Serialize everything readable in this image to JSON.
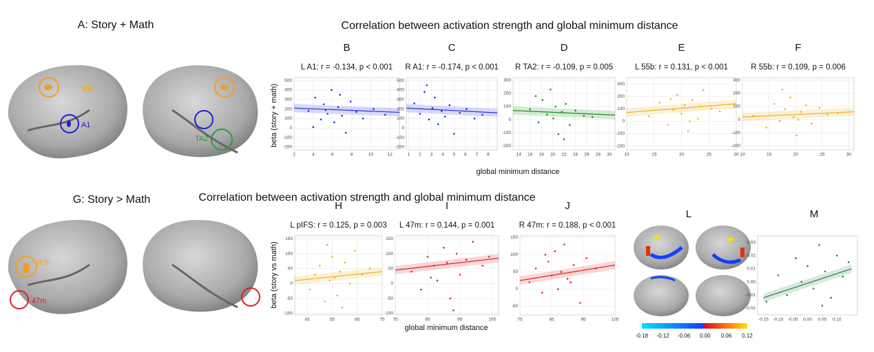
{
  "figure": {
    "label_a": "A: Story + Math",
    "label_g": "G: Story > Math",
    "title_top": "Correlation between activation strength and global minimum distance",
    "title_bottom": "Correlation between activation strength and global minimum distance",
    "ylabel_top": "beta (story + math)",
    "ylabel_bottom": "beta (story vs math)",
    "xlabel_top": "global minimum distance",
    "xlabel_bottom": "global minimum distance",
    "panel_l": "L",
    "panel_m": "M"
  },
  "brain_labels": [
    "55b",
    "A1",
    "TA2",
    "IFS",
    "47m"
  ],
  "colorbar": {
    "lim": [
      -0.18,
      0.12
    ],
    "ticks": [
      -0.18,
      -0.12,
      -0.06,
      {
        "value": 0,
        "label": "0.00"
      },
      0.06,
      0.12
    ]
  },
  "chart_data": [
    {
      "type": "scatter",
      "panel": "B",
      "title": "L A1: r = -0.134, p < 0.001",
      "color": "#1f2ee0",
      "grid": true,
      "xlim": [
        2,
        13
      ],
      "ylim": [
        -230,
        530
      ],
      "xticks": [
        2,
        4,
        6,
        8,
        10,
        12
      ],
      "yticks": [
        500,
        400,
        300,
        200,
        100,
        0,
        -100,
        -200
      ],
      "x": [
        3.5,
        4.2,
        4.8,
        5.1,
        5.5,
        5.9,
        6.2,
        6.6,
        7.0,
        7.4,
        7.9,
        8.5,
        9.2,
        10.3,
        11.5,
        4.0,
        6.8,
        5.3
      ],
      "values": [
        180,
        320,
        90,
        250,
        150,
        400,
        60,
        220,
        130,
        -50,
        280,
        170,
        100,
        200,
        140,
        10,
        350,
        190
      ],
      "fit": {
        "x": [
          2,
          13
        ],
        "y": [
          210,
          165
        ]
      }
    },
    {
      "type": "scatter",
      "panel": "C",
      "title": "R A1: r = -0.174, p < 0.001",
      "color": "#1f2ee0",
      "grid": true,
      "xlim": [
        0.8,
        8.8
      ],
      "ylim": [
        -230,
        530
      ],
      "xticks": [
        1,
        2,
        3,
        4,
        5,
        6,
        7,
        8
      ],
      "yticks": [
        500,
        400,
        300,
        200,
        100,
        0,
        -100,
        -200
      ],
      "x": [
        1.5,
        2.0,
        2.4,
        2.8,
        3.1,
        3.3,
        3.6,
        3.9,
        4.2,
        4.6,
        5.0,
        5.5,
        6.1,
        6.8,
        7.5,
        2.6
      ],
      "values": [
        260,
        150,
        380,
        90,
        210,
        320,
        40,
        180,
        120,
        240,
        -60,
        160,
        200,
        100,
        140,
        450
      ],
      "fit": {
        "x": [
          0.8,
          8.8
        ],
        "y": [
          210,
          160
        ]
      }
    },
    {
      "type": "scatter",
      "panel": "D",
      "title": "R TA2: r = -0.109, p = 0.005",
      "color": "#1e8a1e",
      "grid": true,
      "xlim": [
        13,
        31
      ],
      "ylim": [
        -230,
        320
      ],
      "xticks": [
        14,
        16,
        18,
        20,
        22,
        24,
        26,
        28,
        30
      ],
      "yticks": [
        300,
        200,
        100,
        0,
        -100,
        -200
      ],
      "x": [
        16,
        17.5,
        18.2,
        19,
        19.6,
        20.1,
        20.5,
        21,
        21.6,
        22.3,
        23,
        24,
        25.5,
        27,
        17,
        22
      ],
      "values": [
        80,
        -20,
        150,
        40,
        230,
        10,
        100,
        -110,
        60,
        120,
        -40,
        70,
        30,
        20,
        180,
        -150
      ],
      "fit": {
        "x": [
          13,
          31
        ],
        "y": [
          70,
          35
        ]
      }
    },
    {
      "type": "scatter",
      "panel": "E",
      "title": "L 55b: r = 0.131, p < 0.001",
      "color": "#f0b020",
      "grid": true,
      "xlim": [
        10,
        30
      ],
      "ylim": [
        -230,
        350
      ],
      "xticks": [
        10,
        15,
        20,
        25,
        30
      ],
      "yticks": [
        300,
        200,
        100,
        0,
        -100,
        -200
      ],
      "x": [
        14,
        16,
        17.5,
        18.5,
        19.2,
        20,
        20.6,
        21.2,
        22,
        23,
        24,
        25.5,
        27,
        18,
        21.5,
        23.5
      ],
      "values": [
        40,
        150,
        -30,
        90,
        210,
        60,
        130,
        -80,
        170,
        20,
        250,
        100,
        80,
        180,
        0,
        120
      ],
      "fit": {
        "x": [
          10,
          30
        ],
        "y": [
          70,
          140
        ]
      }
    },
    {
      "type": "scatter",
      "panel": "F",
      "title": "R 55b: r = 0.109, p = 0.006",
      "color": "#f0b020",
      "grid": true,
      "xlim": [
        10,
        31
      ],
      "ylim": [
        -230,
        320
      ],
      "xticks": [
        10,
        15,
        20,
        25,
        30
      ],
      "yticks": [
        300,
        200,
        100,
        0,
        -100,
        -200
      ],
      "x": [
        12,
        14.5,
        16,
        17,
        18,
        19,
        19.6,
        20.2,
        21,
        22,
        23,
        24.5,
        26,
        17.5,
        20.5,
        28
      ],
      "values": [
        30,
        -60,
        120,
        -10,
        80,
        170,
        20,
        -120,
        60,
        110,
        -30,
        90,
        40,
        230,
        0,
        50
      ],
      "fit": {
        "x": [
          10,
          31
        ],
        "y": [
          20,
          60
        ]
      }
    },
    {
      "type": "scatter",
      "panel": "H",
      "title": "L pIFS: r = 0.125, p = 0.003",
      "color": "#f0b020",
      "grid": true,
      "xlim": [
        40,
        75
      ],
      "ylim": [
        -105,
        160
      ],
      "xticks": [
        45,
        55,
        65,
        75
      ],
      "yticks": [
        150,
        100,
        50,
        0,
        -50,
        -100
      ],
      "x": [
        46,
        48,
        50,
        52,
        54,
        55,
        56,
        57,
        58,
        60,
        62,
        64,
        67,
        53,
        59,
        70
      ],
      "values": [
        -20,
        30,
        60,
        -60,
        10,
        90,
        20,
        -40,
        40,
        70,
        0,
        110,
        30,
        130,
        -80,
        50
      ],
      "fit": {
        "x": [
          40,
          75
        ],
        "y": [
          10,
          40
        ]
      }
    },
    {
      "type": "scatter",
      "panel": "I",
      "title": "L 47m: r = 0.144, p = 0.001",
      "color": "#e02020",
      "grid": true,
      "xlim": [
        75,
        107
      ],
      "ylim": [
        -105,
        160
      ],
      "xticks": [
        75,
        85,
        95,
        105
      ],
      "yticks": [
        150,
        100,
        50,
        0,
        -50,
        -100
      ],
      "x": [
        80,
        83,
        85,
        87,
        88,
        90,
        91,
        92,
        94,
        95,
        97,
        99,
        102,
        86,
        93,
        104
      ],
      "values": [
        40,
        -20,
        90,
        60,
        10,
        120,
        70,
        -50,
        100,
        30,
        80,
        140,
        60,
        20,
        -90,
        90
      ],
      "fit": {
        "x": [
          75,
          107
        ],
        "y": [
          45,
          85
        ]
      }
    },
    {
      "type": "scatter",
      "panel": "J",
      "title": "R 47m: r = 0.188, p < 0.001",
      "color": "#e02020",
      "grid": true,
      "xlim": [
        75,
        105
      ],
      "ylim": [
        -75,
        155
      ],
      "xticks": [
        75,
        85,
        95,
        105
      ],
      "yticks": [
        150,
        100,
        50,
        0,
        -50
      ],
      "x": [
        78,
        80,
        82,
        84,
        85,
        86,
        87,
        88,
        89,
        90,
        92,
        94,
        96,
        83,
        91,
        99
      ],
      "values": [
        20,
        60,
        -10,
        80,
        40,
        110,
        0,
        50,
        130,
        30,
        70,
        -40,
        90,
        100,
        20,
        60
      ],
      "fit": {
        "x": [
          75,
          105
        ],
        "y": [
          25,
          70
        ]
      }
    },
    {
      "type": "scatter",
      "color": "#2a7a4a",
      "grid": false,
      "xlim": [
        -0.17,
        0.17
      ],
      "ylim": [
        -0.025,
        0.035
      ],
      "xticks": [
        {
          "value": -0.15,
          "label": "-0.15"
        },
        {
          "value": -0.1,
          "label": "-0.10"
        },
        {
          "value": -0.05,
          "label": "-0.05"
        },
        {
          "value": 0,
          "label": "0.00"
        },
        {
          "value": 0.05,
          "label": "0.05"
        },
        {
          "value": 0.1,
          "label": "0.10"
        }
      ],
      "yticks": [
        0.03,
        0.02,
        0.01,
        {
          "value": 0,
          "label": "0.00"
        },
        -0.01,
        -0.02
      ],
      "x": [
        -0.14,
        -0.1,
        -0.07,
        -0.04,
        -0.02,
        0,
        0.02,
        0.04,
        0.06,
        0.08,
        0.1,
        0.12,
        0.14,
        0.05
      ],
      "values": [
        -0.015,
        0.005,
        -0.01,
        0.018,
        0.0,
        0.012,
        -0.005,
        0.028,
        0.008,
        -0.012,
        0.02,
        0.004,
        0.015,
        -0.018
      ],
      "fit": {
        "x": [
          -0.15,
          0.15
        ],
        "y": [
          -0.012,
          0.01
        ]
      }
    }
  ]
}
